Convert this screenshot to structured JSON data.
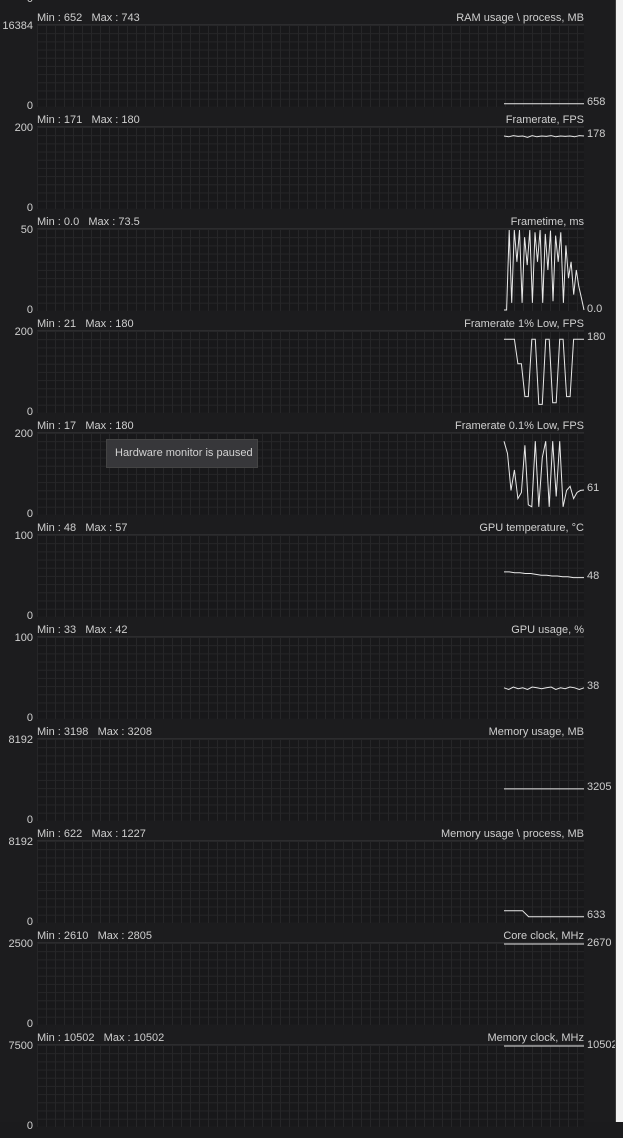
{
  "tooltip": "Hardware monitor is paused",
  "colors": {
    "background": "#1c1c1e",
    "grid": "#262628",
    "trace": "#e8e8e8",
    "text": "#cfcfcf"
  },
  "top_partial_label": "0",
  "chart_data": [
    {
      "type": "line",
      "title": "RAM usage \\ process, MB",
      "min": "652",
      "max": "743",
      "ylim": [
        0,
        16384
      ],
      "ytop_label": "16384",
      "ybottom_label": "0",
      "current": "658",
      "values": [
        658,
        658,
        658,
        658,
        658,
        658,
        658,
        658,
        658,
        658,
        658,
        658
      ]
    },
    {
      "type": "line",
      "title": "Framerate, FPS",
      "min": "171",
      "max": "180",
      "ylim": [
        0,
        200
      ],
      "ytop_label": "200",
      "ybottom_label": "0",
      "current": "178",
      "values": [
        178,
        176,
        179,
        177,
        178,
        175,
        179,
        176,
        178,
        177,
        179,
        176,
        178,
        177,
        178,
        176,
        179,
        178
      ]
    },
    {
      "type": "line",
      "title": "Frametime, ms",
      "min": "0.0",
      "max": "73.5",
      "ylim": [
        0,
        50
      ],
      "ytop_label": "50",
      "ybottom_label": "0",
      "current": "0.0",
      "values": [
        0,
        0,
        50,
        5,
        50,
        30,
        50,
        5,
        45,
        28,
        50,
        5,
        48,
        30,
        50,
        5,
        47,
        25,
        49,
        6,
        46,
        30,
        48,
        5,
        40,
        20,
        30,
        10,
        25,
        15,
        8,
        0
      ]
    },
    {
      "type": "line",
      "title": "Framerate 1% Low, FPS",
      "min": "21",
      "max": "180",
      "ylim": [
        0,
        200
      ],
      "ytop_label": "200",
      "ybottom_label": "0",
      "current": "180",
      "values": [
        180,
        180,
        180,
        180,
        120,
        120,
        40,
        40,
        180,
        180,
        21,
        21,
        180,
        180,
        25,
        25,
        180,
        180,
        40,
        40,
        180,
        180,
        180,
        180
      ]
    },
    {
      "type": "line",
      "title": "Framerate 0.1% Low, FPS",
      "min": "17",
      "max": "180",
      "ylim": [
        0,
        200
      ],
      "ytop_label": "200",
      "ybottom_label": "0",
      "current": "61",
      "values": [
        180,
        150,
        60,
        110,
        40,
        55,
        170,
        25,
        20,
        180,
        20,
        140,
        180,
        20,
        180,
        45,
        180,
        20,
        60,
        70,
        40,
        55,
        60,
        61
      ]
    },
    {
      "type": "line",
      "title": "GPU temperature, °C",
      "min": "48",
      "max": "57",
      "ylim": [
        0,
        100
      ],
      "ytop_label": "100",
      "ybottom_label": "0",
      "current": "48",
      "values": [
        55,
        55,
        54,
        54,
        53,
        53,
        52,
        51,
        51,
        50,
        50,
        49,
        49,
        48,
        48,
        48
      ]
    },
    {
      "type": "line",
      "title": "GPU usage, %",
      "min": "33",
      "max": "42",
      "ylim": [
        0,
        100
      ],
      "ytop_label": "100",
      "ybottom_label": "0",
      "current": "38",
      "values": [
        38,
        36,
        39,
        37,
        38,
        36,
        39,
        38,
        37,
        38,
        39,
        36,
        38,
        37,
        39,
        38,
        36,
        38
      ]
    },
    {
      "type": "line",
      "title": "Memory usage, MB",
      "min": "3198",
      "max": "3208",
      "ylim": [
        0,
        8192
      ],
      "ytop_label": "8192",
      "ybottom_label": "0",
      "current": "3205",
      "values": [
        3205,
        3205,
        3205,
        3205,
        3205,
        3205,
        3205,
        3205
      ]
    },
    {
      "type": "line",
      "title": "Memory usage \\ process, MB",
      "min": "622",
      "max": "1227",
      "ylim": [
        0,
        8192
      ],
      "ytop_label": "8192",
      "ybottom_label": "0",
      "current": "633",
      "values": [
        1227,
        1227,
        1227,
        1227,
        633,
        633,
        633,
        633,
        633,
        633,
        633,
        633,
        633,
        633
      ]
    },
    {
      "type": "line",
      "title": "Core clock, MHz",
      "min": "2610",
      "max": "2805",
      "ylim": [
        0,
        2500
      ],
      "ytop_label": "2500",
      "ybottom_label": "0",
      "current": "2670",
      "values": [
        2670,
        2670,
        2670,
        2670,
        2670,
        2670,
        2670,
        2670
      ]
    },
    {
      "type": "line",
      "title": "Memory clock, MHz",
      "min": "10502",
      "max": "10502",
      "ylim": [
        0,
        7500
      ],
      "ytop_label": "7500",
      "ybottom_label": "0",
      "current": "10502",
      "values": [
        10502,
        10502,
        10502,
        10502,
        10502,
        10502,
        10502,
        10502
      ]
    }
  ]
}
